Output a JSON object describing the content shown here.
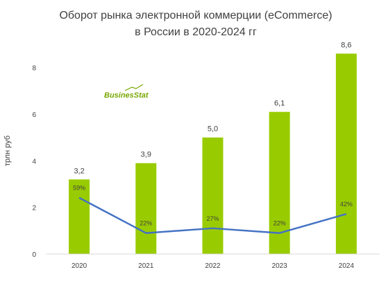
{
  "chart_data": {
    "type": "bar",
    "title_lines": [
      "Оборот рынка электронной коммерции (eCommerce)",
      "в России в 2020-2024 гг"
    ],
    "ylabel": "трлн  руб",
    "xlabel": "",
    "categories": [
      "2020",
      "2021",
      "2022",
      "2023",
      "2024"
    ],
    "values": [
      3.2,
      3.9,
      5.0,
      6.1,
      8.6
    ],
    "value_labels": [
      "3,2",
      "3,9",
      "5,0",
      "6,1",
      "8,6"
    ],
    "ylim": [
      0,
      9
    ],
    "yticks": [
      0,
      2,
      4,
      6,
      8
    ],
    "bar_color": "#99cc00",
    "growth": {
      "values": [
        59,
        22,
        27,
        22,
        42
      ],
      "labels": [
        "59%",
        "22%",
        "27%",
        "22%",
        "42%"
      ],
      "color": "#4472c4"
    },
    "grid": false
  },
  "logo": {
    "text_main": "Busines",
    "text_italic": "Stat",
    "color_main": "#77a800",
    "color_accent": "#77a800"
  }
}
